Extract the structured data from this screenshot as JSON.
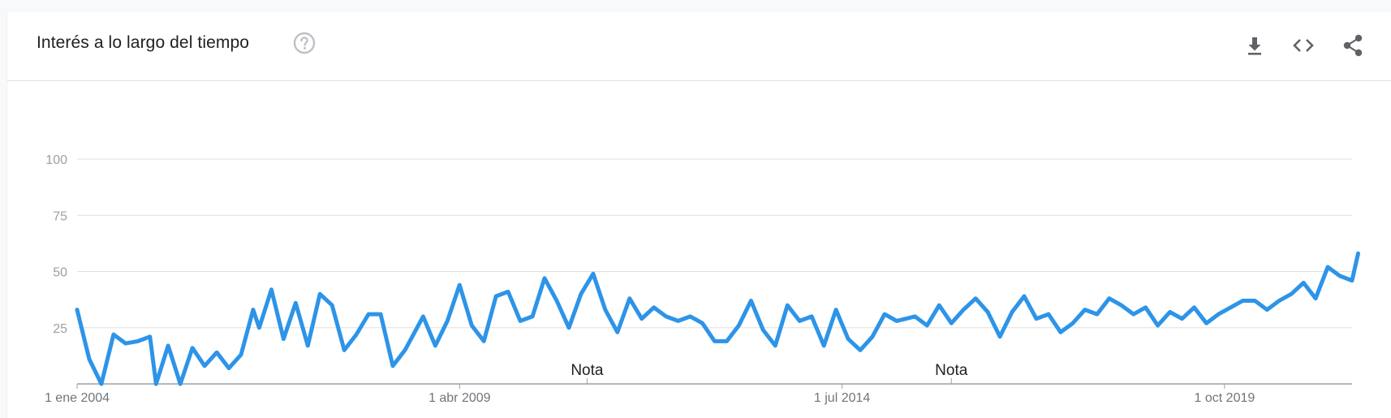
{
  "header": {
    "title": "Interés a lo largo del tiempo",
    "help_icon": "help-circle-icon",
    "actions": [
      {
        "name": "download",
        "icon": "download-icon"
      },
      {
        "name": "embed",
        "icon": "code-icon"
      },
      {
        "name": "share",
        "icon": "share-icon"
      }
    ]
  },
  "colors": {
    "line": "#2d94e8",
    "grid": "#e0e0e0",
    "axis": "#9aa0a6",
    "icon": "#5f6368",
    "help": "#bdc1c6"
  },
  "chart_data": {
    "type": "line",
    "title": "",
    "xlabel": "",
    "ylabel": "",
    "ylim": [
      0,
      100
    ],
    "yticks": [
      "25",
      "50",
      "75",
      "100"
    ],
    "x_tick_labels": [
      "1 ene 2004",
      "1 abr 2009",
      "1 jul 2014",
      "1 oct 2019"
    ],
    "x_tick_positions": [
      0,
      63,
      126,
      189
    ],
    "x_count": 211,
    "grid": true,
    "notes": [
      {
        "label": "Nota",
        "x": 84
      },
      {
        "label": "Nota",
        "x": 144
      }
    ],
    "series": [
      {
        "name": "",
        "points": [
          [
            0,
            33
          ],
          [
            2,
            11
          ],
          [
            4,
            0
          ],
          [
            6,
            22
          ],
          [
            8,
            18
          ],
          [
            10,
            19
          ],
          [
            12,
            21
          ],
          [
            13,
            0
          ],
          [
            15,
            17
          ],
          [
            17,
            0
          ],
          [
            19,
            16
          ],
          [
            21,
            8
          ],
          [
            23,
            14
          ],
          [
            25,
            7
          ],
          [
            27,
            13
          ],
          [
            29,
            33
          ],
          [
            30,
            25
          ],
          [
            32,
            42
          ],
          [
            34,
            20
          ],
          [
            36,
            36
          ],
          [
            38,
            17
          ],
          [
            40,
            40
          ],
          [
            42,
            35
          ],
          [
            44,
            15
          ],
          [
            46,
            22
          ],
          [
            48,
            31
          ],
          [
            50,
            31
          ],
          [
            52,
            8
          ],
          [
            54,
            15
          ],
          [
            57,
            30
          ],
          [
            59,
            17
          ],
          [
            61,
            28
          ],
          [
            63,
            44
          ],
          [
            65,
            26
          ],
          [
            67,
            19
          ],
          [
            69,
            39
          ],
          [
            71,
            41
          ],
          [
            73,
            28
          ],
          [
            75,
            30
          ],
          [
            77,
            47
          ],
          [
            79,
            37
          ],
          [
            81,
            25
          ],
          [
            83,
            40
          ],
          [
            85,
            49
          ],
          [
            87,
            33
          ],
          [
            89,
            23
          ],
          [
            91,
            38
          ],
          [
            93,
            29
          ],
          [
            95,
            34
          ],
          [
            97,
            30
          ],
          [
            99,
            28
          ],
          [
            101,
            30
          ],
          [
            103,
            27
          ],
          [
            105,
            19
          ],
          [
            107,
            19
          ],
          [
            109,
            26
          ],
          [
            111,
            37
          ],
          [
            113,
            24
          ],
          [
            115,
            17
          ],
          [
            117,
            35
          ],
          [
            119,
            28
          ],
          [
            121,
            30
          ],
          [
            123,
            17
          ],
          [
            125,
            33
          ],
          [
            127,
            20
          ],
          [
            129,
            15
          ],
          [
            131,
            21
          ],
          [
            133,
            31
          ],
          [
            135,
            28
          ],
          [
            138,
            30
          ],
          [
            140,
            26
          ],
          [
            142,
            35
          ],
          [
            144,
            27
          ],
          [
            146,
            33
          ],
          [
            148,
            38
          ],
          [
            150,
            32
          ],
          [
            152,
            21
          ],
          [
            154,
            32
          ],
          [
            156,
            39
          ],
          [
            158,
            29
          ],
          [
            160,
            31
          ],
          [
            162,
            23
          ],
          [
            164,
            27
          ],
          [
            166,
            33
          ],
          [
            168,
            31
          ],
          [
            170,
            38
          ],
          [
            172,
            35
          ],
          [
            174,
            31
          ],
          [
            176,
            34
          ],
          [
            178,
            26
          ],
          [
            180,
            32
          ],
          [
            182,
            29
          ],
          [
            184,
            34
          ],
          [
            186,
            27
          ],
          [
            188,
            31
          ],
          [
            190,
            34
          ],
          [
            192,
            37
          ],
          [
            194,
            37
          ],
          [
            196,
            33
          ],
          [
            198,
            37
          ],
          [
            200,
            40
          ],
          [
            202,
            45
          ],
          [
            204,
            38
          ],
          [
            206,
            52
          ],
          [
            208,
            48
          ],
          [
            210,
            46
          ],
          [
            211,
            58
          ]
        ]
      }
    ]
  }
}
